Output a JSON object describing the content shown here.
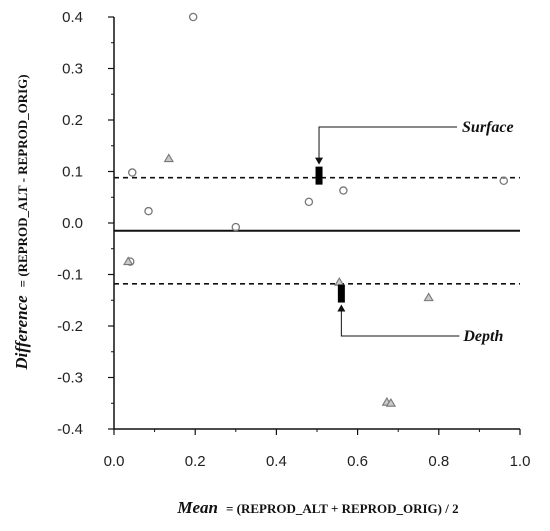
{
  "chart_data": {
    "type": "scatter",
    "xlim": [
      0.0,
      1.0
    ],
    "ylim": [
      -0.4,
      0.4
    ],
    "x_ticks": [
      "0.0",
      "0.2",
      "0.4",
      "0.6",
      "0.8",
      "1.0"
    ],
    "y_ticks": [
      "0.4",
      "0.3",
      "0.2",
      "0.1",
      "0.0",
      "-0.1",
      "-0.2",
      "-0.3",
      "-0.4"
    ],
    "x_tick_values": [
      0.0,
      0.2,
      0.4,
      0.6,
      0.8,
      1.0
    ],
    "y_tick_values": [
      0.4,
      0.3,
      0.2,
      0.1,
      0.0,
      -0.1,
      -0.2,
      -0.3,
      -0.4
    ],
    "xlabel_emph": "Mean",
    "xlabel_rest": "= (REPROD_ALT + REPROD_ORIG) / 2",
    "ylabel_emph": "Difference",
    "ylabel_rest": "= (REPROD_ALT - REPROD_ORIG)",
    "grid": false,
    "mean_difference": -0.015,
    "upper_limit": 0.088,
    "lower_limit": -0.118,
    "series": [
      {
        "marker": "circle",
        "x": [
          0.04,
          0.045,
          0.085,
          0.195,
          0.3,
          0.48,
          0.565,
          0.96
        ],
        "y": [
          -0.075,
          0.098,
          0.023,
          0.4,
          -0.008,
          0.041,
          0.063,
          0.082
        ]
      },
      {
        "marker": "triangle",
        "x": [
          0.035,
          0.135,
          0.555,
          0.775,
          0.672,
          0.682
        ],
        "y": [
          -0.075,
          0.125,
          -0.115,
          -0.145,
          -0.348,
          -0.35
        ]
      }
    ],
    "markers": [
      {
        "label": "Surface",
        "x": 0.505,
        "y": 0.092
      },
      {
        "label": "Depth",
        "x": 0.56,
        "y": -0.137
      }
    ]
  }
}
